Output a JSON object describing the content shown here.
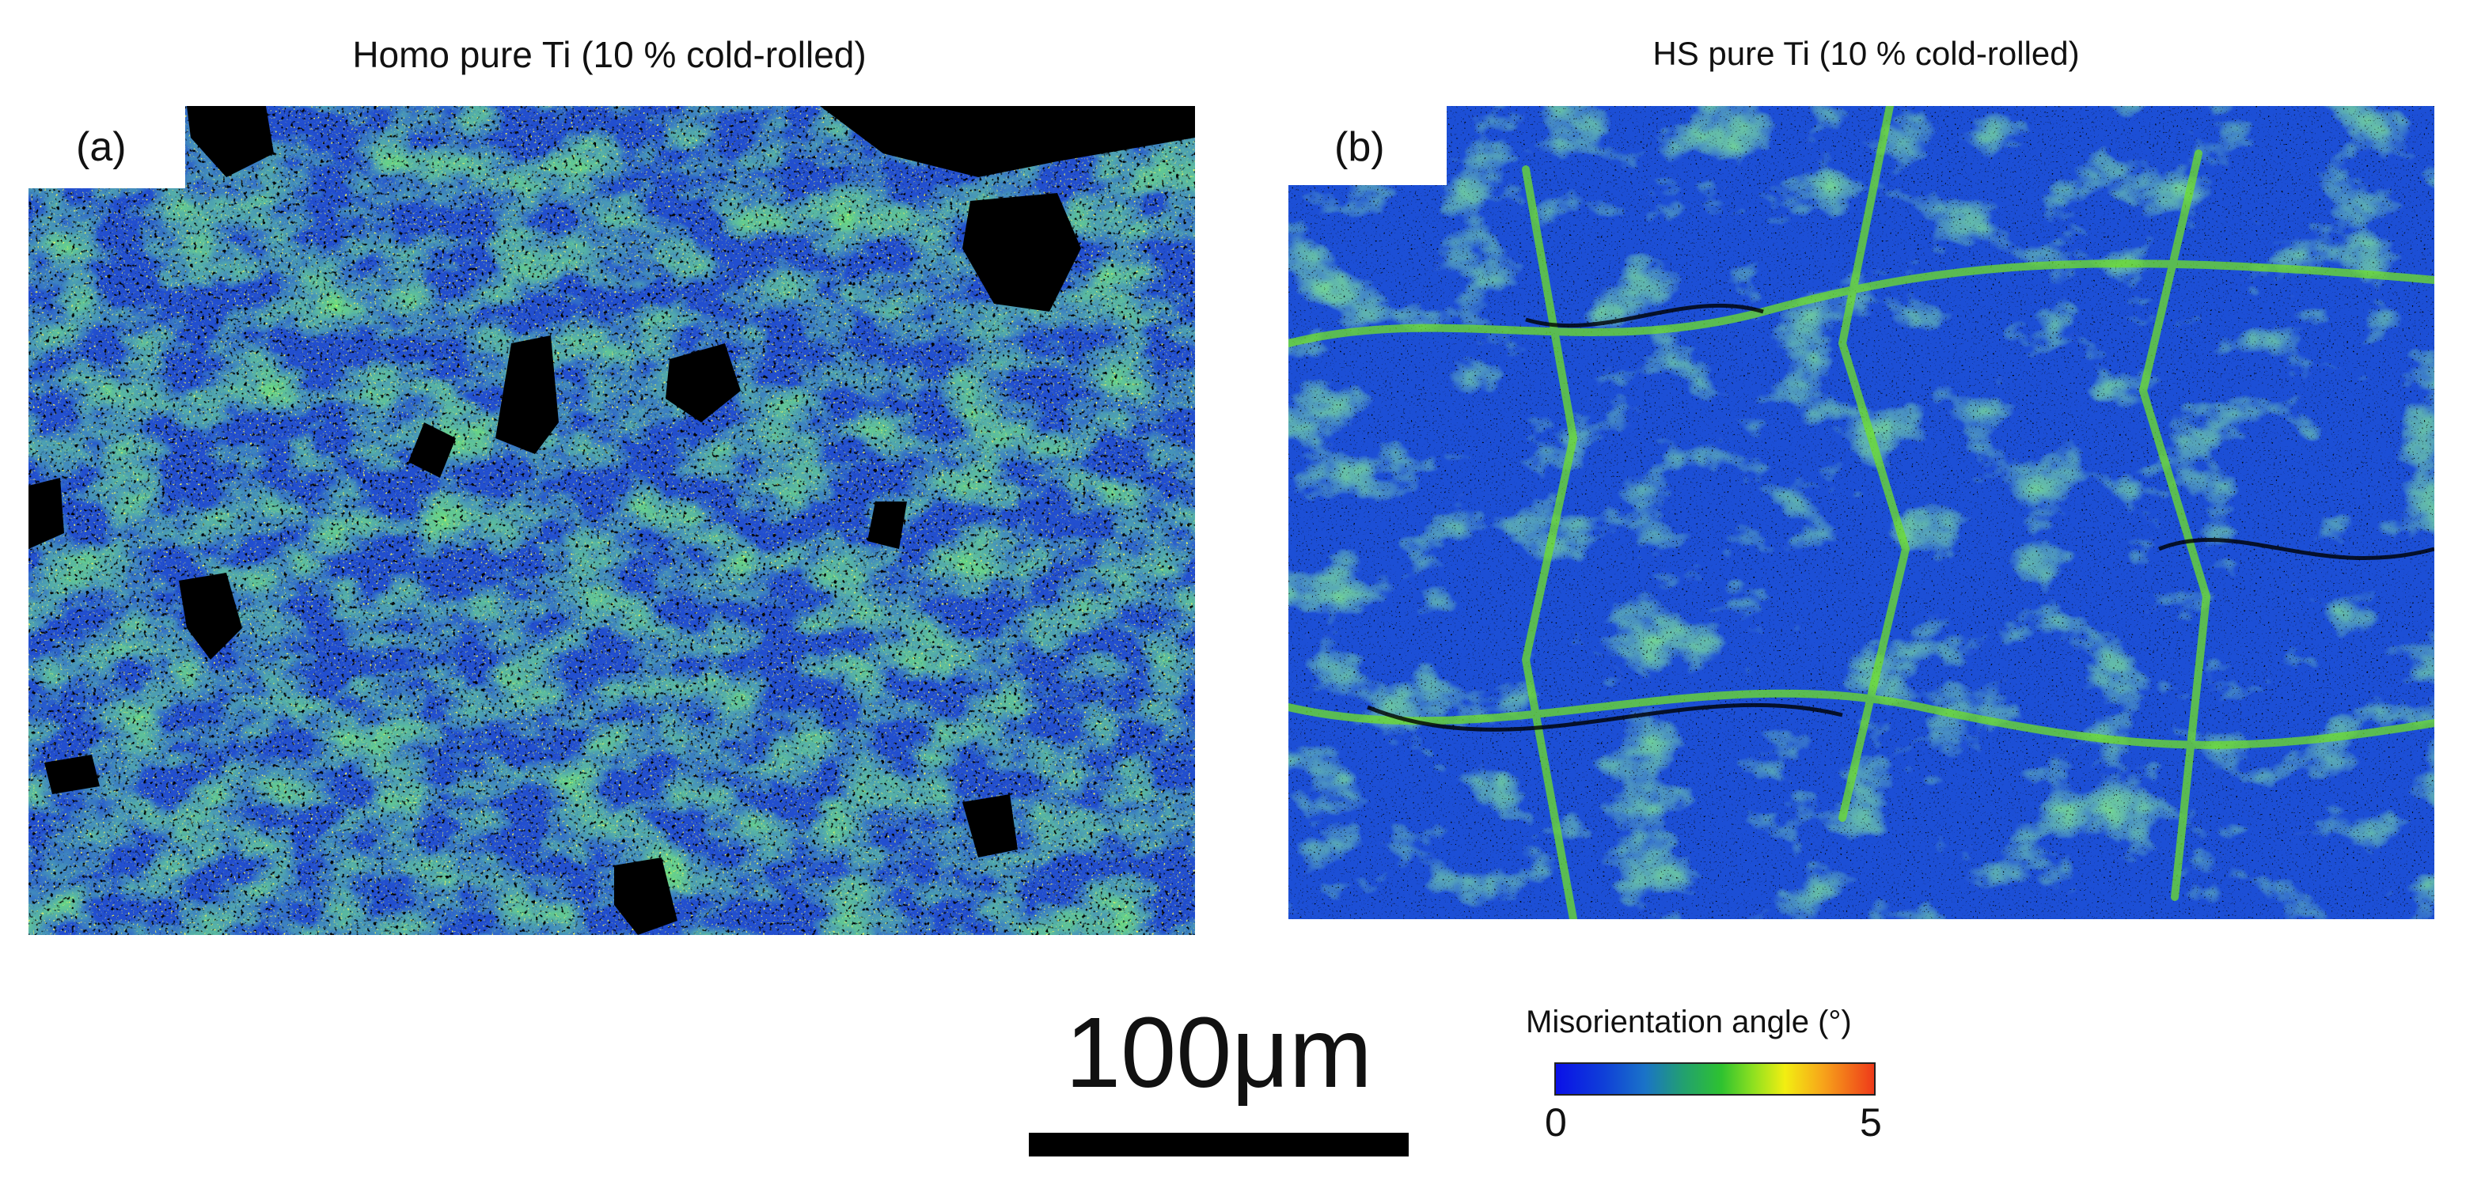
{
  "panels": [
    {
      "title": "Homo pure Ti (10 % cold-rolled)",
      "label": "(a)"
    },
    {
      "title": "HS pure Ti (10 % cold-rolled)",
      "label": "(b)"
    }
  ],
  "scale_bar": {
    "text": "100μm"
  },
  "colorbar": {
    "title": "Misorientation angle  (°)",
    "min_label": "0",
    "max_label": "5",
    "colors": [
      "#0a10e8",
      "#1a73c8",
      "#2ec230",
      "#f2ee12",
      "#ee3a1a"
    ]
  }
}
